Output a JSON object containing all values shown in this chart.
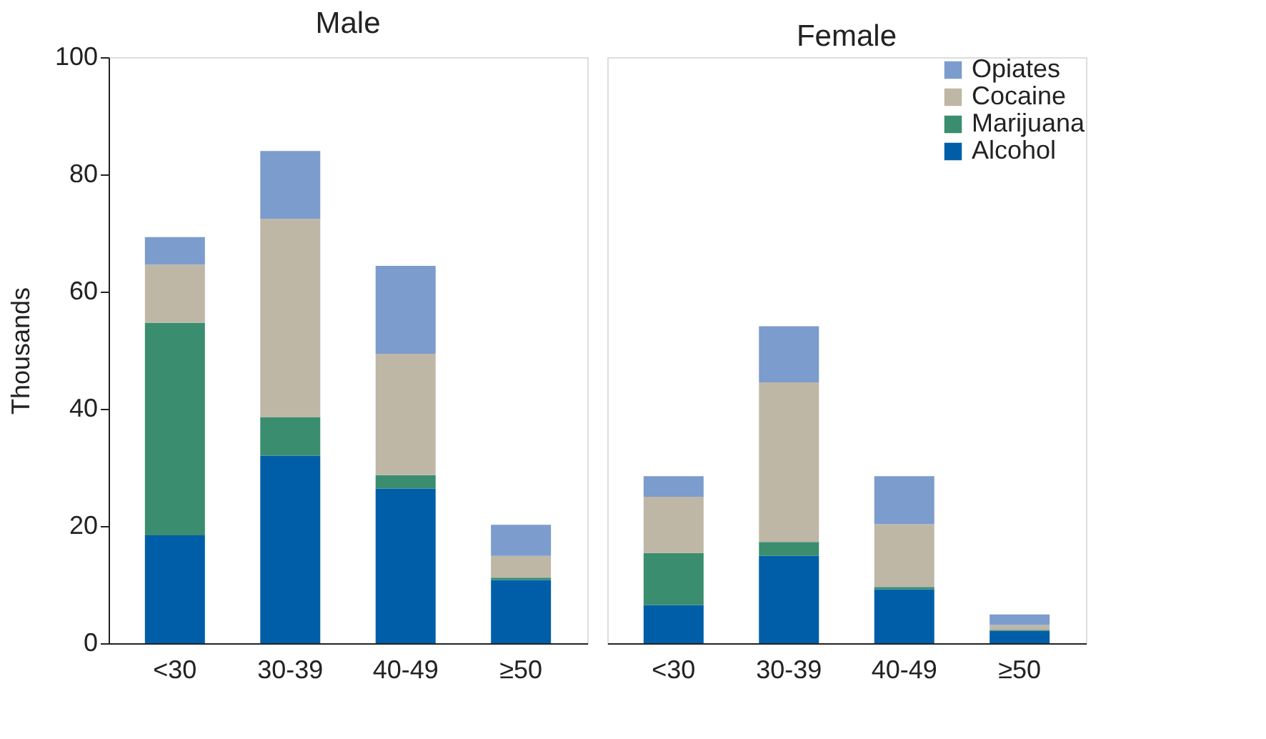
{
  "chart_data": [
    {
      "type": "bar",
      "title": "Male",
      "ylabel": "Thousands",
      "stacked": true,
      "categories": [
        "<30",
        "30-39",
        "40-49",
        "≥50"
      ],
      "ylim": [
        0,
        100
      ],
      "yticks": [
        0,
        20,
        40,
        60,
        80,
        100
      ],
      "grid": false,
      "legend": false,
      "series": [
        {
          "color": "#005ea8",
          "values": [
            18.4,
            32.0,
            26.4,
            10.8
          ]
        },
        {
          "color": "#3a8d6f",
          "values": [
            36.3,
            6.6,
            2.3,
            0.4
          ]
        },
        {
          "color": "#bfb7a6",
          "values": [
            9.9,
            33.8,
            20.7,
            3.7
          ]
        },
        {
          "color": "#7b9ccc",
          "values": [
            4.7,
            11.6,
            15.0,
            5.3
          ]
        }
      ]
    },
    {
      "type": "bar",
      "title": "Female",
      "stacked": true,
      "categories": [
        "<30",
        "30-39",
        "40-49",
        "≥50"
      ],
      "ylim": [
        0,
        100
      ],
      "tick_labels": "x",
      "grid": false,
      "legend": "top right",
      "series": [
        {
          "name": "Alcohol",
          "color": "#005ea8",
          "values": [
            6.5,
            14.9,
            9.2,
            2.1
          ]
        },
        {
          "name": "Marijuana",
          "color": "#3a8d6f",
          "values": [
            8.9,
            2.4,
            0.4,
            0.2
          ]
        },
        {
          "name": "Cocaine",
          "color": "#bfb7a6",
          "values": [
            9.6,
            27.2,
            10.7,
            0.8
          ]
        },
        {
          "name": "Opiates",
          "color": "#7b9ccc",
          "values": [
            3.5,
            9.6,
            8.2,
            1.8
          ]
        }
      ]
    }
  ]
}
